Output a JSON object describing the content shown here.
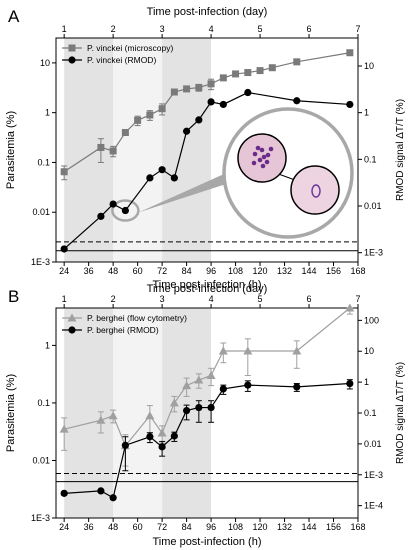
{
  "chart_data": [
    {
      "panel_label": "A",
      "type": "line",
      "xlabel_bottom": "Time post-infection (h)",
      "xlabel_top": "Time post-infection (day)",
      "ylabel_left": "Parasitemia (%)",
      "ylabel_right": "RMOD signal ΔT/T (%)",
      "x_ticks_bottom": [
        "24",
        "36",
        "48",
        "60",
        "72",
        "84",
        "96",
        "108",
        "120",
        "132",
        "144",
        "156",
        "168"
      ],
      "x_ticks_top": [
        "1",
        "2",
        "3",
        "4",
        "5",
        "6",
        "7"
      ],
      "y_ticks_left": [
        "1E-3",
        "0.01",
        "0.1",
        "1",
        "10"
      ],
      "y_ticks_right": [
        "1E-3",
        "0.01",
        "0.1",
        "1",
        "10"
      ],
      "xlim": [
        20,
        168
      ],
      "ylim_left_log10": [
        -3,
        1.5
      ],
      "ylim_right_log10": [
        -3.2,
        1.6
      ],
      "shaded_x_ranges": [
        [
          24,
          48
        ],
        [
          72,
          96
        ]
      ],
      "light_shaded_x_ranges": [
        [
          48,
          72
        ]
      ],
      "dashed_line_right_value": 0.0017,
      "solid_line_right_value": 0.0011,
      "legend_position": "top-left",
      "inset_image": "magnified micrograph of infected red blood cells",
      "series": [
        {
          "name": "P. vinckei (microscopy)",
          "marker": "square",
          "color": "#7a7a7a",
          "axis": "left",
          "x": [
            24,
            42,
            48,
            54,
            60,
            66,
            72,
            78,
            84,
            90,
            96,
            102,
            108,
            114,
            120,
            126,
            138,
            164
          ],
          "y": [
            0.065,
            0.2,
            0.17,
            0.4,
            0.7,
            0.9,
            1.2,
            2.6,
            3.0,
            3.2,
            3.8,
            5.0,
            6.0,
            6.4,
            7.0,
            8.0,
            10.5,
            16
          ],
          "err": [
            0.02,
            0.1,
            0.04,
            0.05,
            0.15,
            0.2,
            0.3,
            0.3,
            0.3,
            0.5,
            0.9,
            0.5,
            0.5,
            0.5,
            0.5,
            0.6,
            0.8,
            1.5
          ]
        },
        {
          "name": "P. vinckei (RMOD)",
          "marker": "circle",
          "color": "#000000",
          "axis": "right",
          "x": [
            24,
            42,
            48,
            54,
            66,
            72,
            78,
            84,
            90,
            96,
            102,
            114,
            138,
            164
          ],
          "y": [
            0.0012,
            0.006,
            0.011,
            0.008,
            0.04,
            0.06,
            0.04,
            0.4,
            0.7,
            1.7,
            1.5,
            2.7,
            1.8,
            1.5
          ]
        }
      ]
    },
    {
      "panel_label": "B",
      "type": "line",
      "xlabel_bottom": "Time post-infection (h)",
      "xlabel_top": "Time post-infection (day)",
      "ylabel_left": "Parasitemia (%)",
      "ylabel_right": "RMOD signal ΔT/T (%)",
      "x_ticks_bottom": [
        "24",
        "36",
        "48",
        "60",
        "72",
        "84",
        "96",
        "108",
        "120",
        "132",
        "144",
        "156",
        "168"
      ],
      "x_ticks_top": [
        "1",
        "2",
        "3",
        "4",
        "5",
        "6",
        "7"
      ],
      "y_ticks_left": [
        "1E-3",
        "0.01",
        "0.1",
        "1"
      ],
      "y_ticks_right": [
        "1E-4",
        "1E-3",
        "0.01",
        "0.1",
        "1",
        "10",
        "100"
      ],
      "xlim": [
        20,
        168
      ],
      "ylim_left_log10": [
        -3,
        0.65
      ],
      "ylim_right_log10": [
        -4.4,
        2.4
      ],
      "shaded_x_ranges": [
        [
          24,
          48
        ],
        [
          72,
          96
        ]
      ],
      "light_shaded_x_ranges": [
        [
          48,
          72
        ]
      ],
      "dashed_line_right_value": 0.0011,
      "solid_line_right_value": 0.0006,
      "legend_position": "top-left",
      "series": [
        {
          "name": "P. berghei (flow cytometry)",
          "marker": "triangle",
          "color": "#a0a0a0",
          "axis": "left",
          "x": [
            24,
            42,
            48,
            54,
            66,
            72,
            78,
            84,
            90,
            96,
            102,
            114,
            138,
            164
          ],
          "y": [
            0.035,
            0.05,
            0.06,
            0.018,
            0.06,
            0.03,
            0.1,
            0.2,
            0.25,
            0.3,
            0.8,
            0.8,
            0.8,
            5.0
          ],
          "err": [
            0.02,
            0.02,
            0.015,
            0.01,
            0.03,
            0.01,
            0.03,
            0.07,
            0.07,
            0.1,
            0.3,
            0.5,
            0.4,
            1.5
          ]
        },
        {
          "name": "P. berghei (RMOD)",
          "marker": "circle",
          "color": "#000000",
          "axis": "right",
          "x": [
            24,
            42,
            48,
            54,
            66,
            72,
            78,
            84,
            90,
            96,
            102,
            114,
            138,
            164
          ],
          "y": [
            0.00025,
            0.0003,
            0.00018,
            0.009,
            0.017,
            0.008,
            0.018,
            0.12,
            0.15,
            0.15,
            0.6,
            0.8,
            0.7,
            0.9
          ],
          "err": [
            3e-05,
            3e-05,
            2e-05,
            0.008,
            0.006,
            0.004,
            0.006,
            0.06,
            0.1,
            0.1,
            0.2,
            0.3,
            0.2,
            0.3
          ]
        }
      ]
    }
  ]
}
